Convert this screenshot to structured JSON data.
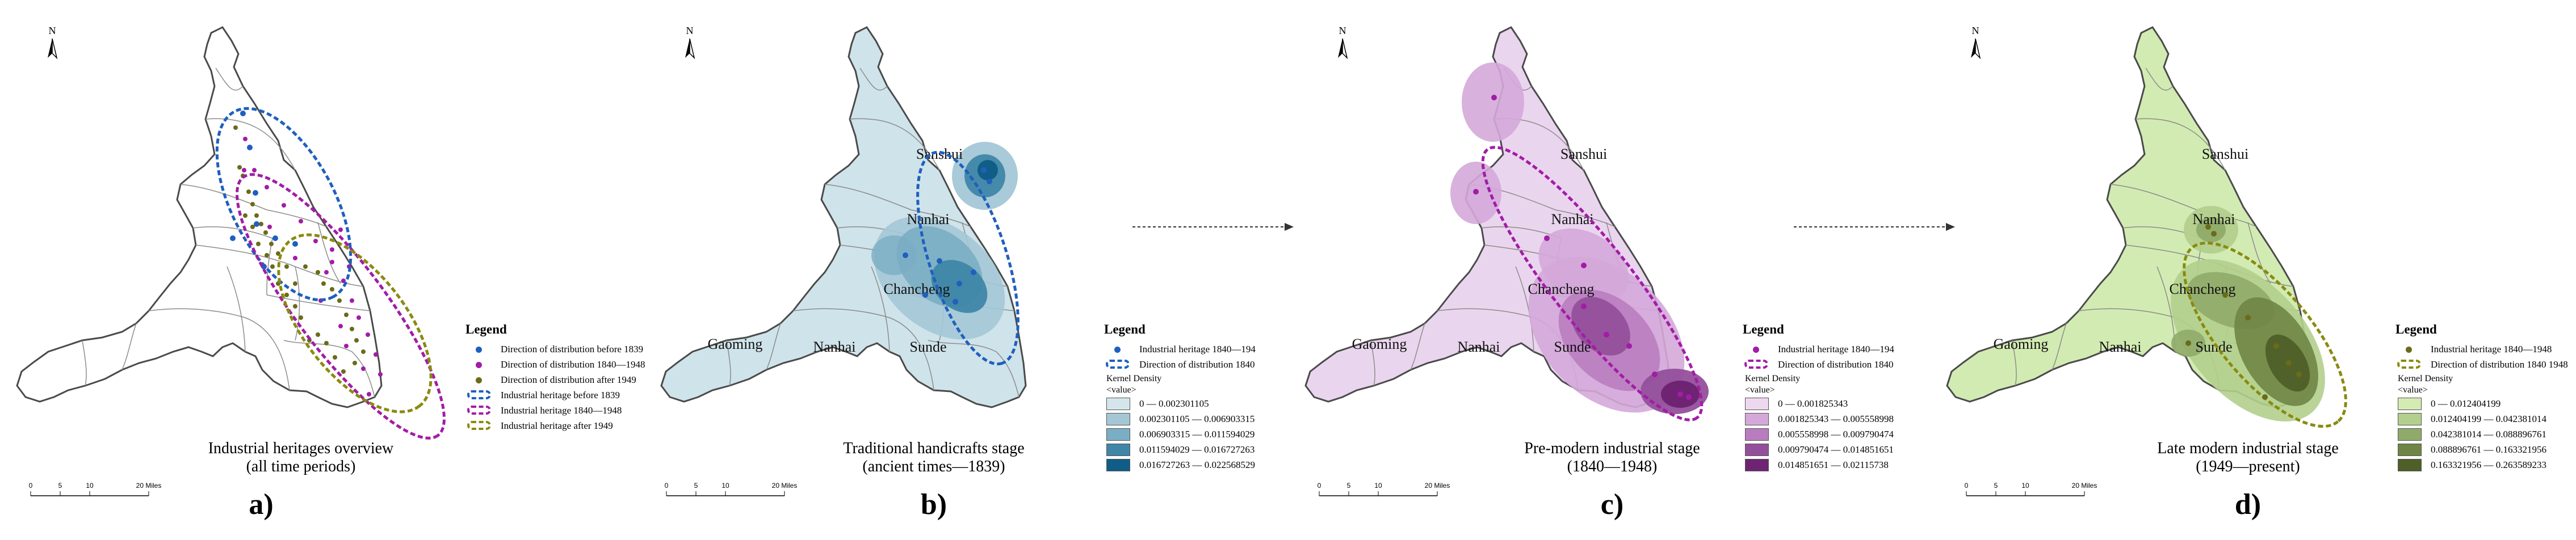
{
  "panels": [
    {
      "letter": "a)",
      "caption": [
        "Industrial heritages overview",
        "(all time periods)"
      ],
      "fill": "#ffffff",
      "labels": [],
      "legend": {
        "title": "Legend",
        "items": [
          {
            "label": "Direction of distribution before 1839",
            "kind": "dot",
            "color": "#1f5fbf"
          },
          {
            "label": "Direction of distribution 1840—1948",
            "kind": "dot",
            "color": "#a21ca6"
          },
          {
            "label": "Direction of distribution after 1949",
            "kind": "dot",
            "color": "#6b6b1a"
          },
          {
            "label": "Industrial heritage before 1839",
            "kind": "ellipse",
            "color": "#1f5fbf"
          },
          {
            "label": "Industrial heritage 1840—1948",
            "kind": "ellipse",
            "color": "#a21ca6"
          },
          {
            "label": "Industrial heritage after 1949",
            "kind": "ellipse",
            "color": "#8a8a10"
          }
        ]
      },
      "scale": [
        "0",
        "5",
        "10",
        "20 Miles"
      ]
    },
    {
      "letter": "b)",
      "caption": [
        "Traditional handicrafts stage",
        "(ancient times—1839)"
      ],
      "fill": "#cfe3ea",
      "labels": [
        "Sanshui",
        "Nanhai",
        "Chancheng",
        "Gaoming",
        "Nanhai",
        "Sunde"
      ],
      "legend": {
        "title": "Legend",
        "items": [
          {
            "label": "Industrial heritage 1840—194",
            "kind": "dot",
            "color": "#1f5fbf"
          },
          {
            "label": "Direction of distribution 1840",
            "kind": "ellipse",
            "color": "#1f5fbf"
          }
        ],
        "kd_title": [
          "Kernel Density",
          "<value>"
        ],
        "ramp": [
          {
            "label": "0 — 0.002301105",
            "color": "#d4e6ec"
          },
          {
            "label": "0.002301105 — 0.006903315",
            "color": "#a4c7d6"
          },
          {
            "label": "0.006903315 — 0.011594029",
            "color": "#7aaec4"
          },
          {
            "label": "0.011594029 — 0.016727263",
            "color": "#3f86a8"
          },
          {
            "label": "0.016727263 — 0.022568529",
            "color": "#105e88"
          }
        ]
      },
      "scale": [
        "0",
        "5",
        "10",
        "20 Miles"
      ]
    },
    {
      "letter": "c)",
      "caption": [
        "Pre-modern industrial stage",
        "(1840—1948)"
      ],
      "fill": "#ead5ee",
      "labels": [
        "Sanshui",
        "Nanhai",
        "Chancheng",
        "Gaoming",
        "Nanhai",
        "Sunde"
      ],
      "legend": {
        "title": "Legend",
        "items": [
          {
            "label": "Industrial heritage 1840—194",
            "kind": "dot",
            "color": "#a21ca6"
          },
          {
            "label": "Direction of distribution 1840",
            "kind": "ellipse",
            "color": "#a21ca6"
          }
        ],
        "kd_title": [
          "Kernel Density",
          "<value>"
        ],
        "ramp": [
          {
            "label": "0 — 0.001825343",
            "color": "#eed8f0"
          },
          {
            "label": "0.001825343 — 0.005558998",
            "color": "#d4a9d9"
          },
          {
            "label": "0.005558998 — 0.009790474",
            "color": "#b97dbf"
          },
          {
            "label": "0.009790474 — 0.014851651",
            "color": "#944f9b"
          },
          {
            "label": "0.014851651 — 0.02115738",
            "color": "#6e2473"
          }
        ]
      },
      "scale": [
        "0",
        "5",
        "10",
        "20 Miles"
      ]
    },
    {
      "letter": "d)",
      "caption": [
        "Late modern industrial stage",
        "(1949—present)"
      ],
      "fill": "#d2ebb2",
      "labels": [
        "Sanshui",
        "Nanhai",
        "Chancheng",
        "Gaoming",
        "Nanhai",
        "Sunde"
      ],
      "legend": {
        "title": "Legend",
        "items": [
          {
            "label": "Industrial heritage 1840—1948",
            "kind": "dot",
            "color": "#6b6b1a"
          },
          {
            "label": "Direction of distribution 1840     1948",
            "kind": "ellipse",
            "color": "#8a8a10"
          }
        ],
        "kd_title": [
          "Kernel Density",
          "<value>"
        ],
        "ramp": [
          {
            "label": "0 — 0.012404199",
            "color": "#d4ebb4"
          },
          {
            "label": "0.012404199 — 0.042381014",
            "color": "#b3cf8d"
          },
          {
            "label": "0.042381014 — 0.088896761",
            "color": "#90ab69"
          },
          {
            "label": "0.088896761 — 0.163321956",
            "color": "#6f8545"
          },
          {
            "label": "0.163321956 — 0.263589233",
            "color": "#4e5f27"
          }
        ]
      },
      "scale": [
        "0",
        "5",
        "10",
        "20 Miles"
      ]
    }
  ],
  "north_label": "N",
  "colors": {
    "outline": "#4a4a4a",
    "inner_border": "#8c8c8c",
    "arrow": "#333333"
  }
}
